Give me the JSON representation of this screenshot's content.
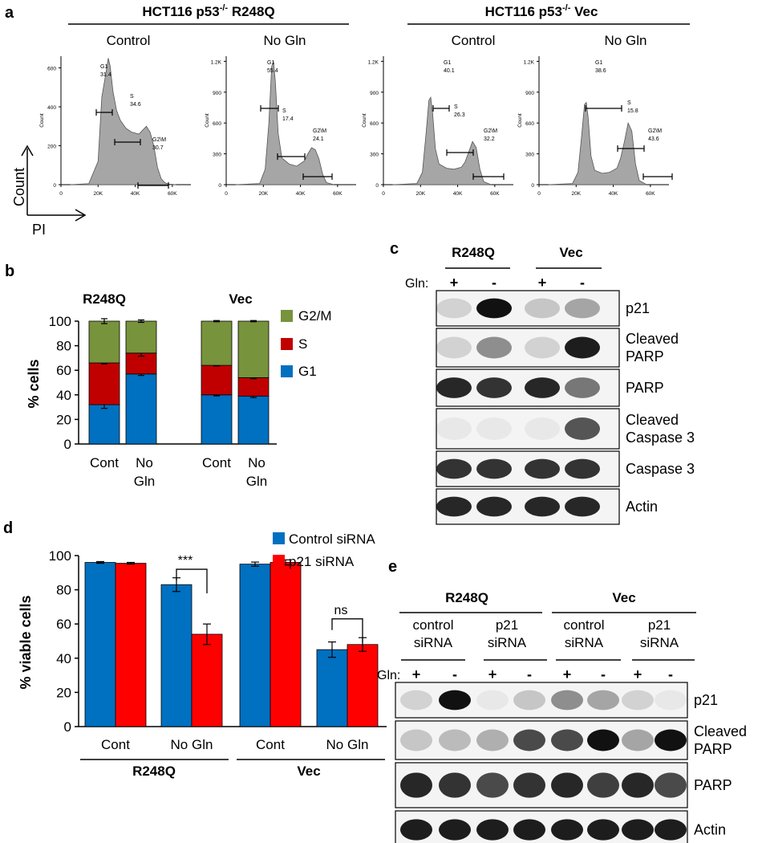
{
  "panel_a": {
    "letter": "a",
    "group_labels": [
      "HCT116 p53",
      "-/-",
      " R248Q",
      "HCT116 p53",
      "-/-",
      " Vec"
    ],
    "condition_labels": [
      "Control",
      "No Gln",
      "Control",
      "No Gln"
    ],
    "axis_labels": {
      "y": "Count",
      "x": "PI"
    },
    "histograms": [
      {
        "yticks": [
          "0",
          "200",
          "400",
          "600"
        ],
        "ymax": 660,
        "xticks": [
          "0",
          "20K",
          "40K",
          "60K"
        ],
        "gates": [
          {
            "name": "G1",
            "value": "31.4"
          },
          {
            "name": "S",
            "value": "34.6"
          },
          {
            "name": "G2\\M",
            "value": "30.7"
          }
        ]
      },
      {
        "yticks": [
          "0",
          "300",
          "600",
          "900",
          "1.2K"
        ],
        "ymax": 1250,
        "xticks": [
          "0",
          "20K",
          "40K",
          "60K"
        ],
        "gates": [
          {
            "name": "G1",
            "value": "55.4"
          },
          {
            "name": "S",
            "value": "17.4"
          },
          {
            "name": "G2\\M",
            "value": "24.1"
          }
        ]
      },
      {
        "yticks": [
          "0",
          "300",
          "600",
          "900",
          "1.2K"
        ],
        "ymax": 1250,
        "xticks": [
          "0",
          "20K",
          "40K",
          "60K"
        ],
        "gates": [
          {
            "name": "G1",
            "value": "40.1"
          },
          {
            "name": "S",
            "value": "26.3"
          },
          {
            "name": "G2\\M",
            "value": "32.2"
          }
        ]
      },
      {
        "yticks": [
          "0",
          "300",
          "600",
          "900",
          "1.2K"
        ],
        "ymax": 1250,
        "xticks": [
          "0",
          "20K",
          "40K",
          "60K"
        ],
        "gates": [
          {
            "name": "G1",
            "value": "38.6"
          },
          {
            "name": "S",
            "value": "15.8"
          },
          {
            "name": "G2\\M",
            "value": "43.6"
          }
        ]
      }
    ],
    "histogram_count_label": "Count"
  },
  "panel_b": {
    "letter": "b",
    "ylabel": "% cells",
    "ylim": [
      0,
      100
    ],
    "yticks": [
      "0",
      "20",
      "40",
      "60",
      "80",
      "100"
    ],
    "groups": [
      "R248Q",
      "Vec"
    ],
    "categories": [
      "Cont",
      "No Gln",
      "Cont",
      "No Gln"
    ],
    "legend": [
      {
        "name": "G2/M",
        "color": "#77933c"
      },
      {
        "name": "S",
        "color": "#c00000"
      },
      {
        "name": "G1",
        "color": "#0070c0"
      }
    ]
  },
  "panel_c": {
    "letter": "c",
    "groups": [
      "R248Q",
      "Vec"
    ],
    "gln_label": "Gln:",
    "gln_signs": [
      "+",
      "-",
      "+",
      "-"
    ],
    "blots": [
      "p21",
      "Cleaved PARP",
      "PARP",
      "Cleaved Caspase 3",
      "Caspase 3",
      "Actin"
    ],
    "blot_lines": [
      [
        "p21"
      ],
      [
        "Cleaved",
        "PARP"
      ],
      [
        "PARP"
      ],
      [
        "Cleaved",
        "Caspase 3"
      ],
      [
        "Caspase 3"
      ],
      [
        "Actin"
      ]
    ]
  },
  "panel_d": {
    "letter": "d",
    "ylabel": "% viable cells",
    "ylim": [
      0,
      100
    ],
    "yticks": [
      "0",
      "20",
      "40",
      "60",
      "80",
      "100"
    ],
    "categories": [
      "Cont",
      "No Gln",
      "Cont",
      "No Gln"
    ],
    "groups": [
      "R248Q",
      "Vec"
    ],
    "legend": [
      {
        "name": "Control siRNA",
        "color": "#0070c0"
      },
      {
        "name": "p21 siRNA",
        "color": "#ff0000"
      }
    ],
    "significance": [
      "***",
      "ns"
    ]
  },
  "panel_e": {
    "letter": "e",
    "groups": [
      "R248Q",
      "Vec"
    ],
    "subgroups": [
      [
        "control",
        "siRNA"
      ],
      [
        "p21",
        "siRNA"
      ],
      [
        "control",
        "siRNA"
      ],
      [
        "p21",
        "siRNA"
      ]
    ],
    "gln_label": "Gln:",
    "gln_signs": [
      "+",
      "-",
      "+",
      "-",
      "+",
      "-",
      "+",
      "-"
    ],
    "blots": [
      "p21",
      "Cleaved PARP",
      "PARP",
      "Actin"
    ],
    "blot_lines": [
      [
        "p21"
      ],
      [
        "Cleaved",
        "PARP"
      ],
      [
        "PARP"
      ],
      [
        "Actin"
      ]
    ]
  },
  "chart_data": [
    {
      "type": "area",
      "panel": "a",
      "title": "HCT116 p53-/- R248Q — Control",
      "xlabel": "PI",
      "ylabel": "Count",
      "xlim": [
        0,
        70000
      ],
      "ylim": [
        0,
        660
      ],
      "x": [
        5000,
        15000,
        20000,
        22000,
        24000,
        25500,
        26500,
        28000,
        30000,
        32000,
        35000,
        38000,
        40000,
        42000,
        44000,
        46000,
        48000,
        50000,
        52000,
        54000,
        56000,
        58000,
        62000
      ],
      "values": [
        0,
        5,
        120,
        450,
        560,
        650,
        610,
        480,
        380,
        330,
        290,
        270,
        265,
        260,
        280,
        300,
        270,
        200,
        90,
        30,
        10,
        3,
        0
      ]
    },
    {
      "type": "area",
      "panel": "a",
      "title": "HCT116 p53-/- R248Q — No Gln",
      "xlabel": "PI",
      "ylabel": "Count",
      "xlim": [
        0,
        70000
      ],
      "ylim": [
        0,
        1250
      ],
      "x": [
        5000,
        18000,
        21000,
        23000,
        24500,
        25500,
        26500,
        28000,
        30000,
        34000,
        38000,
        42000,
        44000,
        46000,
        48000,
        50000,
        52000,
        54000,
        58000
      ],
      "values": [
        0,
        10,
        150,
        600,
        1150,
        1200,
        1000,
        500,
        260,
        200,
        180,
        230,
        300,
        360,
        340,
        250,
        100,
        20,
        0
      ]
    },
    {
      "type": "area",
      "panel": "a",
      "title": "HCT116 p53-/- Vec — Control",
      "xlabel": "PI",
      "ylabel": "Count",
      "xlim": [
        0,
        70000
      ],
      "ylim": [
        0,
        1250
      ],
      "x": [
        5000,
        18000,
        21000,
        23000,
        24500,
        25500,
        26500,
        28000,
        30000,
        34000,
        38000,
        42000,
        44000,
        46000,
        48000,
        50000,
        52000,
        54000,
        58000
      ],
      "values": [
        0,
        10,
        120,
        500,
        820,
        850,
        700,
        350,
        200,
        160,
        150,
        170,
        220,
        320,
        420,
        360,
        150,
        30,
        0
      ]
    },
    {
      "type": "area",
      "panel": "a",
      "title": "HCT116 p53-/- Vec — No Gln",
      "xlabel": "PI",
      "ylabel": "Count",
      "xlim": [
        0,
        70000
      ],
      "ylim": [
        0,
        1250
      ],
      "x": [
        5000,
        18000,
        21000,
        23000,
        24500,
        25500,
        26500,
        28000,
        30000,
        34000,
        38000,
        42000,
        44000,
        46000,
        48000,
        50000,
        52000,
        54000,
        58000
      ],
      "values": [
        0,
        10,
        120,
        480,
        780,
        800,
        650,
        280,
        140,
        110,
        120,
        160,
        260,
        420,
        600,
        520,
        200,
        40,
        0
      ]
    },
    {
      "type": "bar",
      "panel": "b",
      "stacked": true,
      "title": "",
      "xlabel": "",
      "ylabel": "% cells",
      "ylim": [
        0,
        100
      ],
      "categories": [
        "Cont",
        "No Gln",
        "Cont",
        "No Gln"
      ],
      "groups": [
        "R248Q",
        "R248Q",
        "Vec",
        "Vec"
      ],
      "series": [
        {
          "name": "G1",
          "color": "#0070c0",
          "values": [
            32,
            57,
            40,
            39
          ],
          "error_top": [
            3,
            1.2,
            0.8,
            1.2
          ]
        },
        {
          "name": "S",
          "color": "#c00000",
          "values": [
            34,
            17,
            24,
            15
          ],
          "error_top": [
            0.8,
            2.5,
            0.5,
            0.8
          ]
        },
        {
          "name": "G2/M",
          "color": "#77933c",
          "values": [
            34,
            26,
            36,
            46
          ],
          "error_top": [
            2,
            1,
            0.5,
            0.5
          ]
        }
      ]
    },
    {
      "type": "bar",
      "panel": "d",
      "title": "",
      "xlabel": "",
      "ylabel": "% viable cells",
      "ylim": [
        0,
        100
      ],
      "categories": [
        "Cont",
        "No Gln",
        "Cont",
        "No Gln"
      ],
      "groups": [
        "R248Q",
        "R248Q",
        "Vec",
        "Vec"
      ],
      "series": [
        {
          "name": "Control siRNA",
          "color": "#0070c0",
          "values": [
            96,
            83,
            95,
            45
          ],
          "errors": [
            0.5,
            4,
            1.2,
            4.5
          ]
        },
        {
          "name": "p21 siRNA",
          "color": "#ff0000",
          "values": [
            95.5,
            54,
            96,
            48
          ],
          "errors": [
            0.5,
            6,
            1.5,
            4
          ]
        }
      ],
      "significance": [
        {
          "category": "No Gln",
          "group": "R248Q",
          "label": "***"
        },
        {
          "category": "No Gln",
          "group": "Vec",
          "label": "ns"
        }
      ]
    },
    {
      "type": "table",
      "panel": "c",
      "title": "Western blot",
      "rows": [
        "p21",
        "Cleaved PARP",
        "PARP",
        "Cleaved Caspase 3",
        "Caspase 3",
        "Actin"
      ],
      "columns": [
        "R248Q +Gln",
        "R248Q -Gln",
        "Vec +Gln",
        "Vec -Gln"
      ],
      "band_intensity": [
        [
          0.15,
          1.0,
          0.2,
          0.35
        ],
        [
          0.15,
          0.45,
          0.15,
          0.95
        ],
        [
          0.9,
          0.85,
          0.9,
          0.55
        ],
        [
          0.05,
          0.05,
          0.05,
          0.7
        ],
        [
          0.85,
          0.85,
          0.85,
          0.85
        ],
        [
          0.9,
          0.9,
          0.9,
          0.9
        ]
      ]
    },
    {
      "type": "table",
      "panel": "e",
      "title": "Western blot",
      "rows": [
        "p21",
        "Cleaved PARP",
        "PARP",
        "Actin"
      ],
      "columns": [
        "R248Q control siRNA +",
        "R248Q control siRNA -",
        "R248Q p21 siRNA +",
        "R248Q p21 siRNA -",
        "Vec control siRNA +",
        "Vec control siRNA -",
        "Vec p21 siRNA +",
        "Vec p21 siRNA -"
      ],
      "band_intensity": [
        [
          0.15,
          1.0,
          0.05,
          0.2,
          0.45,
          0.35,
          0.15,
          0.05
        ],
        [
          0.2,
          0.25,
          0.3,
          0.75,
          0.75,
          1.0,
          0.35,
          1.0
        ],
        [
          0.9,
          0.85,
          0.75,
          0.85,
          0.9,
          0.8,
          0.9,
          0.75
        ],
        [
          0.95,
          0.95,
          0.95,
          0.95,
          0.95,
          0.95,
          0.95,
          0.95
        ]
      ]
    }
  ]
}
